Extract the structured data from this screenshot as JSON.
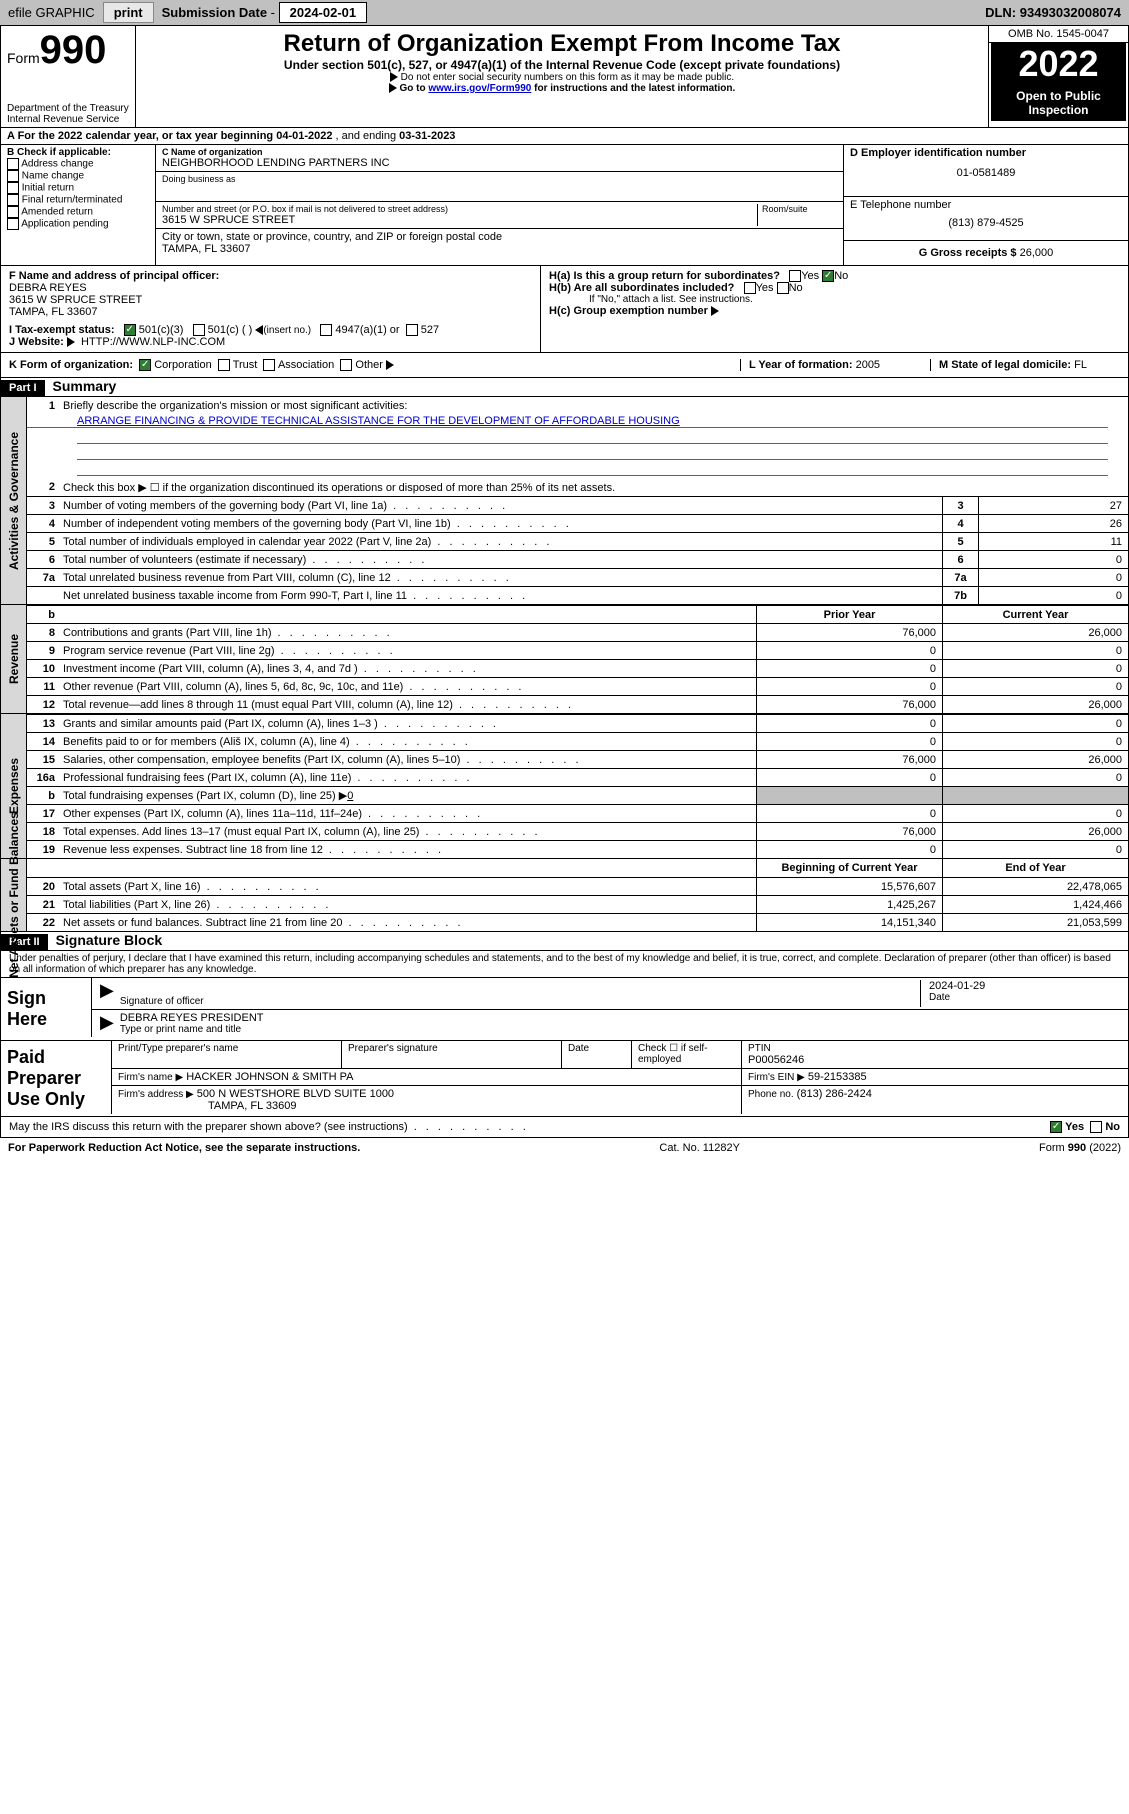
{
  "topbar": {
    "efile": "efile GRAPHIC",
    "print": "print",
    "sub_label": "Submission Date",
    "sub_date": "2024-02-01",
    "dln_label": "DLN:",
    "dln": "93493032008074"
  },
  "header": {
    "form_word": "Form",
    "form_num": "990",
    "dept": "Department of the Treasury",
    "irs": "Internal Revenue Service",
    "title": "Return of Organization Exempt From Income Tax",
    "subtitle": "Under section 501(c), 527, or 4947(a)(1) of the Internal Revenue Code (except private foundations)",
    "note1": "Do not enter social security numbers on this form as it may be made public.",
    "note2_pre": "Go to ",
    "note2_link": "www.irs.gov/Form990",
    "note2_post": " for instructions and the latest information.",
    "omb": "OMB No. 1545-0047",
    "year": "2022",
    "open": "Open to Public Inspection"
  },
  "period": {
    "a_label": "A For the 2022 calendar year, or tax year beginning ",
    "begin": "04-01-2022",
    "mid": " , and ending ",
    "end": "03-31-2023"
  },
  "sec_b": {
    "label": "B Check if applicable:",
    "items": [
      "Address change",
      "Name change",
      "Initial return",
      "Final return/terminated",
      "Amended return",
      "Application pending"
    ]
  },
  "sec_c": {
    "name_lbl": "C Name of organization",
    "name": "NEIGHBORHOOD LENDING PARTNERS INC",
    "dba_lbl": "Doing business as",
    "street_lbl": "Number and street (or P.O. box if mail is not delivered to street address)",
    "room_lbl": "Room/suite",
    "street": "3615 W SPRUCE STREET",
    "city_lbl": "City or town, state or province, country, and ZIP or foreign postal code",
    "city": "TAMPA, FL  33607"
  },
  "sec_d": {
    "ein_lbl": "D Employer identification number",
    "ein": "01-0581489"
  },
  "sec_e": {
    "tel_lbl": "E Telephone number",
    "tel": "(813) 879-4525"
  },
  "sec_g": {
    "lbl": "G Gross receipts $",
    "val": "26,000"
  },
  "sec_f": {
    "lbl": "F Name and address of principal officer:",
    "name": "DEBRA REYES",
    "addr1": "3615 W SPRUCE STREET",
    "addr2": "TAMPA, FL  33607"
  },
  "sec_h": {
    "ha": "H(a)  Is this a group return for subordinates?",
    "hb": "H(b)  Are all subordinates included?",
    "hb_note": "If \"No,\" attach a list. See instructions.",
    "hc": "H(c)  Group exemption number",
    "yes": "Yes",
    "no": "No"
  },
  "sec_i": {
    "lbl": "I    Tax-exempt status:",
    "opt1": "501(c)(3)",
    "opt2": "501(c) (  )",
    "opt2_note": "(insert no.)",
    "opt3": "4947(a)(1) or",
    "opt4": "527"
  },
  "sec_j": {
    "lbl": "J    Website:",
    "val": "HTTP://WWW.NLP-INC.COM"
  },
  "sec_k": {
    "lbl": "K Form of organization:",
    "opts": [
      "Corporation",
      "Trust",
      "Association",
      "Other"
    ]
  },
  "sec_l": {
    "lbl": "L Year of formation:",
    "val": "2005"
  },
  "sec_m": {
    "lbl": "M State of legal domicile:",
    "val": "FL"
  },
  "part1": {
    "hdr": "Part I",
    "title": "Summary"
  },
  "summary": {
    "q1": "Briefly describe the organization's mission or most significant activities:",
    "mission": "ARRANGE FINANCING & PROVIDE TECHNICAL ASSISTANCE FOR THE DEVELOPMENT OF AFFORDABLE HOUSING",
    "q2": "Check this box ▶ ☐  if the organization discontinued its operations or disposed of more than 25% of its net assets.",
    "rows_single": [
      {
        "n": "3",
        "t": "Number of voting members of the governing body (Part VI, line 1a)",
        "c": "3",
        "v": "27"
      },
      {
        "n": "4",
        "t": "Number of independent voting members of the governing body (Part VI, line 1b)",
        "c": "4",
        "v": "26"
      },
      {
        "n": "5",
        "t": "Total number of individuals employed in calendar year 2022 (Part V, line 2a)",
        "c": "5",
        "v": "11"
      },
      {
        "n": "6",
        "t": "Total number of volunteers (estimate if necessary)",
        "c": "6",
        "v": "0"
      },
      {
        "n": "7a",
        "t": "Total unrelated business revenue from Part VIII, column (C), line 12",
        "c": "7a",
        "v": "0"
      },
      {
        "n": "",
        "t": "Net unrelated business taxable income from Form 990-T, Part I, line 11",
        "c": "7b",
        "v": "0"
      }
    ],
    "hdr_prior": "Prior Year",
    "hdr_current": "Current Year",
    "rows_rev": [
      {
        "n": "8",
        "t": "Contributions and grants (Part VIII, line 1h)",
        "p": "76,000",
        "c": "26,000"
      },
      {
        "n": "9",
        "t": "Program service revenue (Part VIII, line 2g)",
        "p": "0",
        "c": "0"
      },
      {
        "n": "10",
        "t": "Investment income (Part VIII, column (A), lines 3, 4, and 7d )",
        "p": "0",
        "c": "0"
      },
      {
        "n": "11",
        "t": "Other revenue (Part VIII, column (A), lines 5, 6d, 8c, 9c, 10c, and 11e)",
        "p": "0",
        "c": "0"
      },
      {
        "n": "12",
        "t": "Total revenue—add lines 8 through 11 (must equal Part VIII, column (A), line 12)",
        "p": "76,000",
        "c": "26,000"
      }
    ],
    "rows_exp": [
      {
        "n": "13",
        "t": "Grants and similar amounts paid (Part IX, column (A), lines 1–3 )",
        "p": "0",
        "c": "0"
      },
      {
        "n": "14",
        "t": "Benefits paid to or for members (Ališ IX, column (A), line 4)",
        "p": "0",
        "c": "0"
      },
      {
        "n": "15",
        "t": "Salaries, other compensation, employee benefits (Part IX, column (A), lines 5–10)",
        "p": "76,000",
        "c": "26,000"
      },
      {
        "n": "16a",
        "t": "Professional fundraising fees (Part IX, column (A), line 11e)",
        "p": "0",
        "c": "0"
      }
    ],
    "row16b_pre": "Total fundraising expenses (Part IX, column (D), line 25) ▶",
    "row16b_val": "0",
    "rows_exp2": [
      {
        "n": "17",
        "t": "Other expenses (Part IX, column (A), lines 11a–11d, 11f–24e)",
        "p": "0",
        "c": "0"
      },
      {
        "n": "18",
        "t": "Total expenses. Add lines 13–17 (must equal Part IX, column (A), line 25)",
        "p": "76,000",
        "c": "26,000"
      },
      {
        "n": "19",
        "t": "Revenue less expenses. Subtract line 18 from line 12",
        "p": "0",
        "c": "0"
      }
    ],
    "hdr_begin": "Beginning of Current Year",
    "hdr_end": "End of Year",
    "rows_net": [
      {
        "n": "20",
        "t": "Total assets (Part X, line 16)",
        "p": "15,576,607",
        "c": "22,478,065"
      },
      {
        "n": "21",
        "t": "Total liabilities (Part X, line 26)",
        "p": "1,425,267",
        "c": "1,424,466"
      },
      {
        "n": "22",
        "t": "Net assets or fund balances. Subtract line 21 from line 20",
        "p": "14,151,340",
        "c": "21,053,599"
      }
    ]
  },
  "vtabs": {
    "gov": "Activities & Governance",
    "rev": "Revenue",
    "exp": "Expenses",
    "net": "Net Assets or Fund Balances"
  },
  "part2": {
    "hdr": "Part II",
    "title": "Signature Block"
  },
  "penalties": "Under penalties of perjury, I declare that I have examined this return, including accompanying schedules and statements, and to the best of my knowledge and belief, it is true, correct, and complete. Declaration of preparer (other than officer) is based on all information of which preparer has any knowledge.",
  "sign": {
    "here": "Sign Here",
    "sig_lbl": "Signature of officer",
    "date_lbl": "Date",
    "date": "2024-01-29",
    "name": "DEBRA REYES PRESIDENT",
    "name_lbl": "Type or print name and title"
  },
  "paid": {
    "title": "Paid Preparer Use Only",
    "hdr": [
      "Print/Type preparer's name",
      "Preparer's signature",
      "Date"
    ],
    "check_lbl": "Check ☐ if self-employed",
    "ptin_lbl": "PTIN",
    "ptin": "P00056246",
    "firm_name_lbl": "Firm's name   ▶",
    "firm_name": "HACKER JOHNSON & SMITH PA",
    "firm_ein_lbl": "Firm's EIN ▶",
    "firm_ein": "59-2153385",
    "firm_addr_lbl": "Firm's address ▶",
    "firm_addr1": "500 N WESTSHORE BLVD SUITE 1000",
    "firm_addr2": "TAMPA, FL  33609",
    "phone_lbl": "Phone no.",
    "phone": "(813) 286-2424",
    "discuss": "May the IRS discuss this return with the preparer shown above? (see instructions)"
  },
  "footer": {
    "left": "For Paperwork Reduction Act Notice, see the separate instructions.",
    "mid": "Cat. No. 11282Y",
    "right": "Form 990 (2022)"
  },
  "colors": {
    "link": "#0000cc",
    "grey": "#c0c0c0",
    "green": "#2e7d32"
  }
}
